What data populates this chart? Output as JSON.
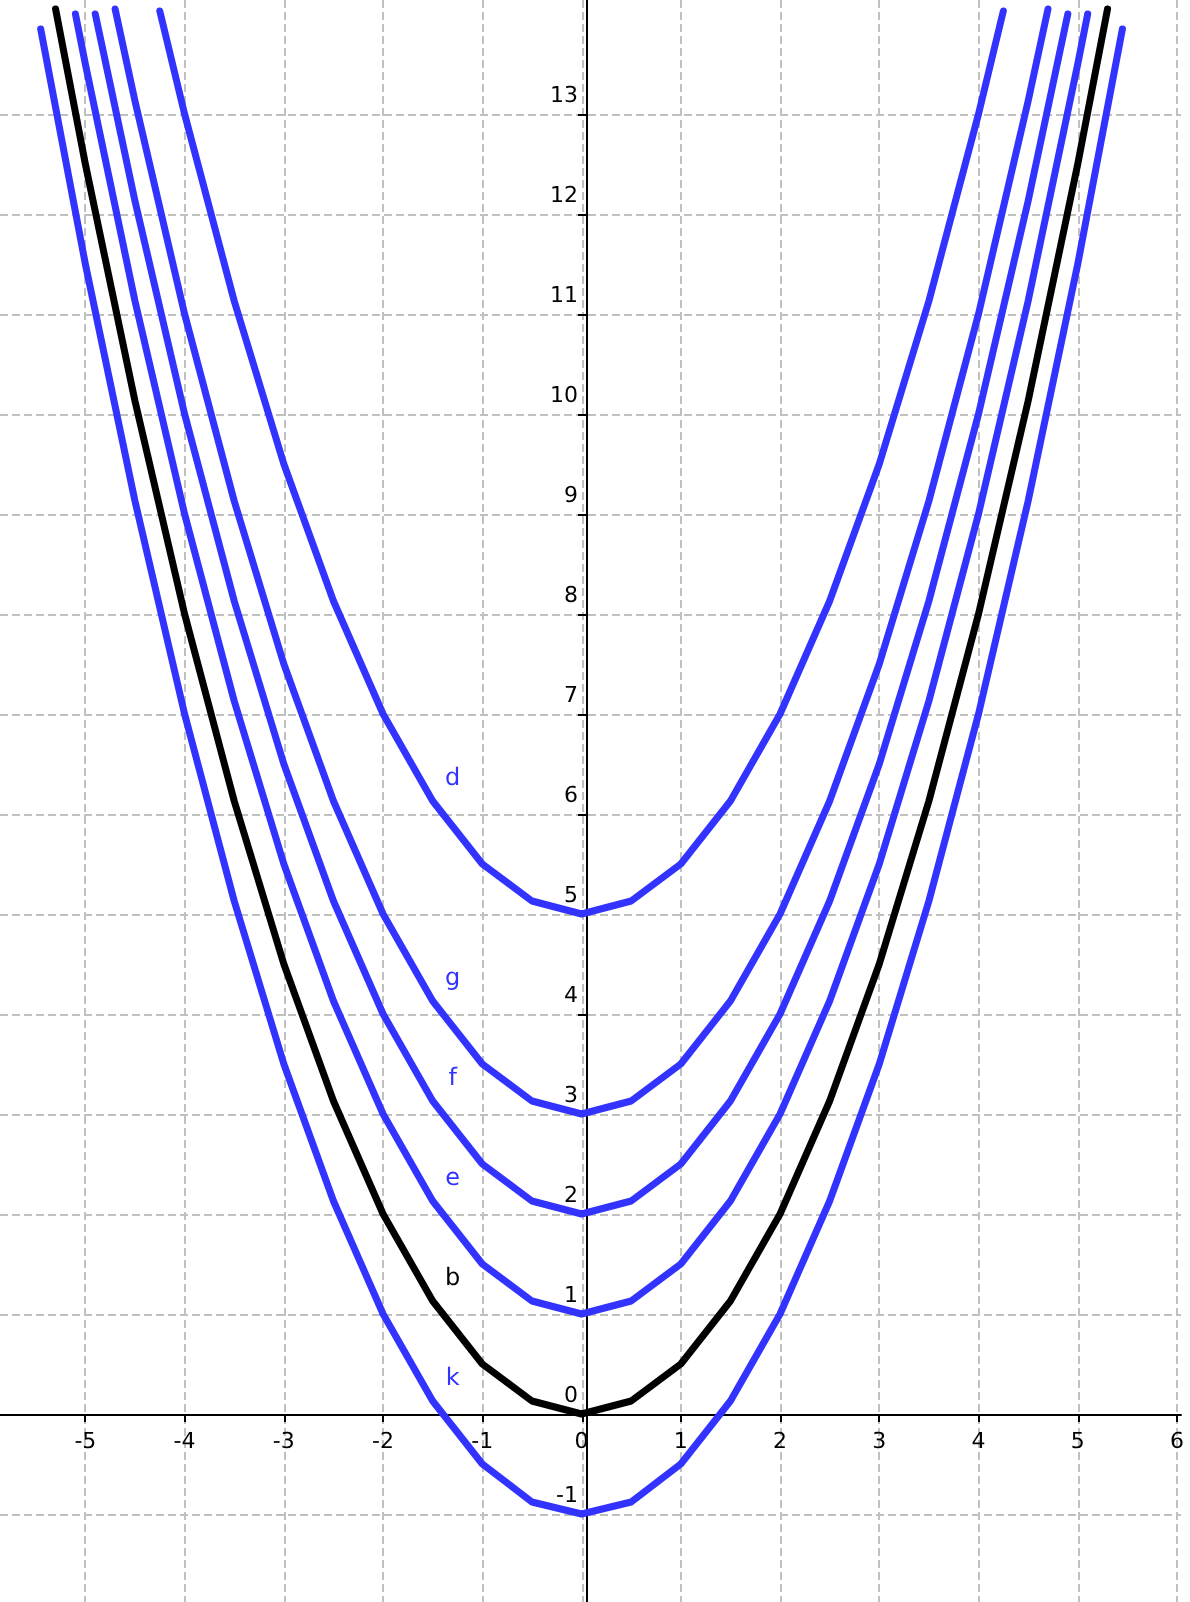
{
  "chart_data": {
    "type": "line",
    "xlim": [
      -5.86,
      6.04
    ],
    "ylim": [
      -1.88,
      14.14
    ],
    "xticks": [
      -5,
      -4,
      -3,
      -2,
      -1,
      0,
      1,
      2,
      3,
      4,
      5,
      6
    ],
    "yticks": [
      -1,
      0,
      1,
      2,
      3,
      4,
      5,
      6,
      7,
      8,
      9,
      10,
      11,
      12,
      13
    ],
    "grid": true,
    "legend": false,
    "marker": "none",
    "line_style": "solid",
    "series": [
      {
        "name": "d",
        "color": "#3333ff",
        "x": [
          -4.25,
          -4,
          -3.5,
          -3,
          -2.5,
          -2,
          -1.5,
          -1,
          -0.5,
          0,
          0.5,
          1,
          1.5,
          2,
          2.5,
          3,
          3.5,
          4,
          4.25
        ],
        "values": [
          14.03,
          13,
          11.13,
          9.5,
          8.13,
          7,
          6.13,
          5.5,
          5.13,
          5,
          5.13,
          5.5,
          6.13,
          7,
          8.13,
          9.5,
          11.13,
          13,
          14.03
        ]
      },
      {
        "name": "g",
        "color": "#3333ff",
        "x": [
          -4.7,
          -4.5,
          -4,
          -3.5,
          -3,
          -2.5,
          -2,
          -1.5,
          -1,
          -0.5,
          0,
          0.5,
          1,
          1.5,
          2,
          2.5,
          3,
          3.5,
          4,
          4.5,
          4.7
        ],
        "values": [
          14.05,
          13.13,
          11,
          9.13,
          7.5,
          6.13,
          5,
          4.13,
          3.5,
          3.13,
          3,
          3.13,
          3.5,
          4.13,
          5,
          6.13,
          7.5,
          9.13,
          11,
          13.13,
          14.05
        ]
      },
      {
        "name": "f",
        "color": "#3333ff",
        "x": [
          -4.9,
          -4.5,
          -4,
          -3.5,
          -3,
          -2.5,
          -2,
          -1.5,
          -1,
          -0.5,
          0,
          0.5,
          1,
          1.5,
          2,
          2.5,
          3,
          3.5,
          4,
          4.5,
          4.9
        ],
        "values": [
          14,
          12.13,
          10,
          8.13,
          6.5,
          5.13,
          4,
          3.13,
          2.5,
          2.13,
          2,
          2.13,
          2.5,
          3.13,
          4,
          5.13,
          6.5,
          8.13,
          10,
          12.13,
          14
        ]
      },
      {
        "name": "e",
        "color": "#3333ff",
        "x": [
          -5.1,
          -5,
          -4.5,
          -4,
          -3.5,
          -3,
          -2.5,
          -2,
          -1.5,
          -1,
          -0.5,
          0,
          0.5,
          1,
          1.5,
          2,
          2.5,
          3,
          3.5,
          4,
          4.5,
          5,
          5.1
        ],
        "values": [
          14,
          13.5,
          11.13,
          9,
          7.13,
          5.5,
          4.13,
          3,
          2.13,
          1.5,
          1.13,
          1,
          1.13,
          1.5,
          2.13,
          3,
          4.13,
          5.5,
          7.13,
          9,
          11.13,
          13.5,
          14
        ]
      },
      {
        "name": "b",
        "color": "#000000",
        "x": [
          -5.3,
          -5,
          -4.5,
          -4,
          -3.5,
          -3,
          -2.5,
          -2,
          -1.5,
          -1,
          -0.5,
          0,
          0.5,
          1,
          1.5,
          2,
          2.5,
          3,
          3.5,
          4,
          4.5,
          5,
          5.3
        ],
        "values": [
          14.05,
          12.5,
          10.13,
          8,
          6.13,
          4.5,
          3.13,
          2,
          1.13,
          0.5,
          0.13,
          0,
          0.13,
          0.5,
          1.13,
          2,
          3.13,
          4.5,
          6.13,
          8,
          10.13,
          12.5,
          14.05
        ]
      },
      {
        "name": "k",
        "color": "#3333ff",
        "x": [
          -5.45,
          -5,
          -4.5,
          -4,
          -3.5,
          -3,
          -2.5,
          -2,
          -1.5,
          -1,
          -0.5,
          0,
          0.5,
          1,
          1.5,
          2,
          2.5,
          3,
          3.5,
          4,
          4.5,
          5,
          5.45
        ],
        "values": [
          13.85,
          11.5,
          9.13,
          7,
          5.13,
          3.5,
          2.13,
          1,
          0.13,
          -0.5,
          -0.88,
          -1,
          -0.88,
          -0.5,
          0.13,
          1,
          2.13,
          3.5,
          5.13,
          7,
          9.13,
          11.5,
          13.85
        ]
      }
    ]
  }
}
